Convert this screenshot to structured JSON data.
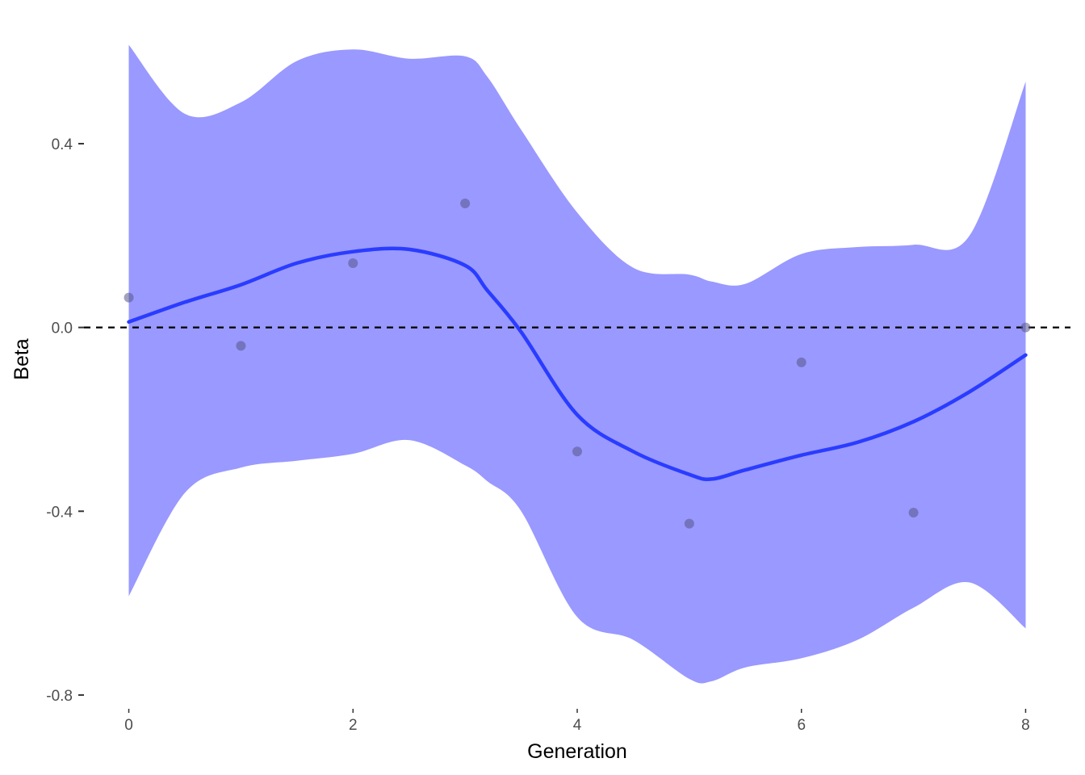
{
  "chart_data": {
    "type": "scatter",
    "title": "",
    "xlabel": "Generation",
    "ylabel": "Beta",
    "xlim": [
      -0.4,
      8.4
    ],
    "ylim": [
      -0.83,
      0.66
    ],
    "x_ticks": [
      0,
      2,
      4,
      6,
      8
    ],
    "x_tick_labels": [
      "0",
      "2",
      "4",
      "6",
      "8"
    ],
    "y_ticks": [
      -0.8,
      -0.4,
      0.0,
      0.4
    ],
    "y_tick_labels": [
      "-0.8",
      "-0.4",
      "0.0",
      "0.4"
    ],
    "grid": false,
    "reference_line": {
      "y": 0,
      "style": "dashed",
      "color": "#000000"
    },
    "points": {
      "x": [
        0,
        1,
        2,
        3,
        4,
        5,
        6,
        7,
        8
      ],
      "y": [
        0.065,
        -0.04,
        0.14,
        0.27,
        -0.27,
        -0.427,
        -0.076,
        -0.403,
        0.0
      ],
      "color": "#555588"
    },
    "smooth": {
      "color": "#2a3cff",
      "band_color": "#9999ff",
      "x": [
        0,
        0.5,
        1,
        1.5,
        2,
        2.5,
        3,
        3.2,
        3.5,
        4,
        4.5,
        5,
        5.2,
        5.5,
        6,
        6.5,
        7,
        7.5,
        8
      ],
      "y": [
        0.012,
        0.055,
        0.093,
        0.14,
        0.165,
        0.17,
        0.135,
        0.08,
        -0.01,
        -0.19,
        -0.27,
        -0.32,
        -0.33,
        -0.31,
        -0.278,
        -0.25,
        -0.205,
        -0.14,
        -0.06
      ],
      "lower": [
        -0.585,
        -0.36,
        -0.305,
        -0.29,
        -0.275,
        -0.245,
        -0.3,
        -0.335,
        -0.4,
        -0.63,
        -0.68,
        -0.765,
        -0.77,
        -0.74,
        -0.72,
        -0.68,
        -0.61,
        -0.555,
        -0.655
      ],
      "upper": [
        0.615,
        0.465,
        0.49,
        0.58,
        0.605,
        0.585,
        0.59,
        0.545,
        0.43,
        0.25,
        0.13,
        0.115,
        0.1,
        0.095,
        0.16,
        0.175,
        0.18,
        0.2,
        0.535
      ]
    }
  }
}
